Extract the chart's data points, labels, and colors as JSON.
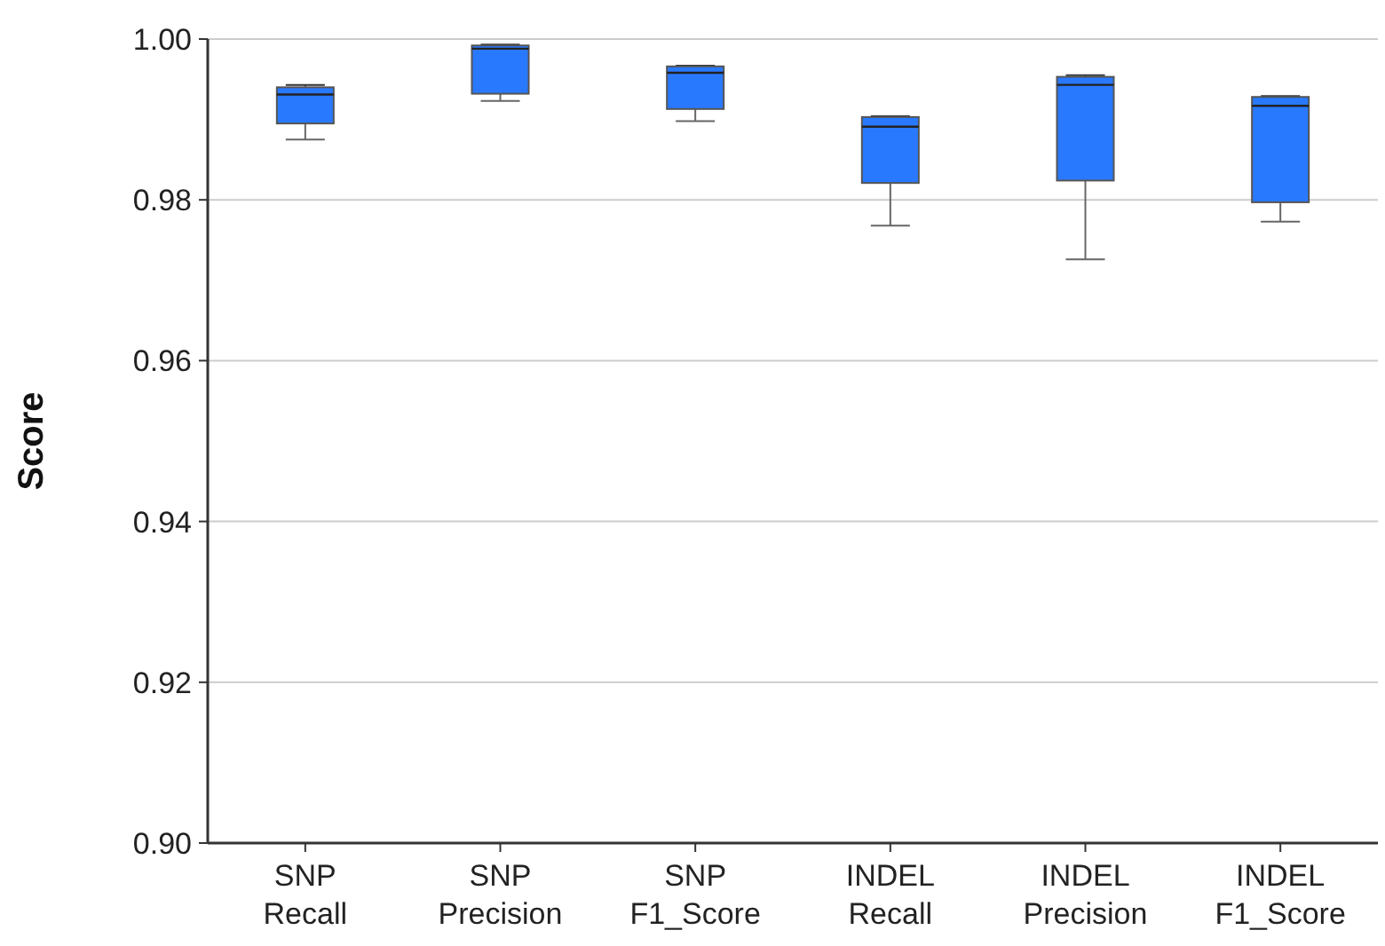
{
  "chart_data": {
    "type": "box",
    "ylabel": "Score",
    "categories": [
      "SNP Recall",
      "SNP Precision",
      "SNP F1_Score",
      "INDEL Recall",
      "INDEL Precision",
      "INDEL F1_Score"
    ],
    "color": "#2979ff",
    "boxes": [
      {
        "low": 0.9875,
        "q1": 0.9895,
        "median": 0.9931,
        "q3": 0.994,
        "high": 0.9943
      },
      {
        "low": 0.9923,
        "q1": 0.9932,
        "median": 0.9988,
        "q3": 0.9992,
        "high": 0.9993
      },
      {
        "low": 0.9898,
        "q1": 0.9913,
        "median": 0.9958,
        "q3": 0.9966,
        "high": 0.9967
      },
      {
        "low": 0.9768,
        "q1": 0.9821,
        "median": 0.9891,
        "q3": 0.9903,
        "high": 0.9904
      },
      {
        "low": 0.9726,
        "q1": 0.9824,
        "median": 0.9943,
        "q3": 0.9953,
        "high": 0.9955
      },
      {
        "low": 0.9773,
        "q1": 0.9797,
        "median": 0.9917,
        "q3": 0.9928,
        "high": 0.9929
      }
    ],
    "ylim": [
      0.9,
      1.0
    ],
    "yticks": [
      {
        "value": 0.9,
        "label": "0.90"
      },
      {
        "value": 0.92,
        "label": "0.92"
      },
      {
        "value": 0.94,
        "label": "0.94"
      },
      {
        "value": 0.96,
        "label": "0.96"
      },
      {
        "value": 0.98,
        "label": "0.98"
      },
      {
        "value": 1.0,
        "label": "1.00"
      }
    ],
    "grid": "y"
  }
}
